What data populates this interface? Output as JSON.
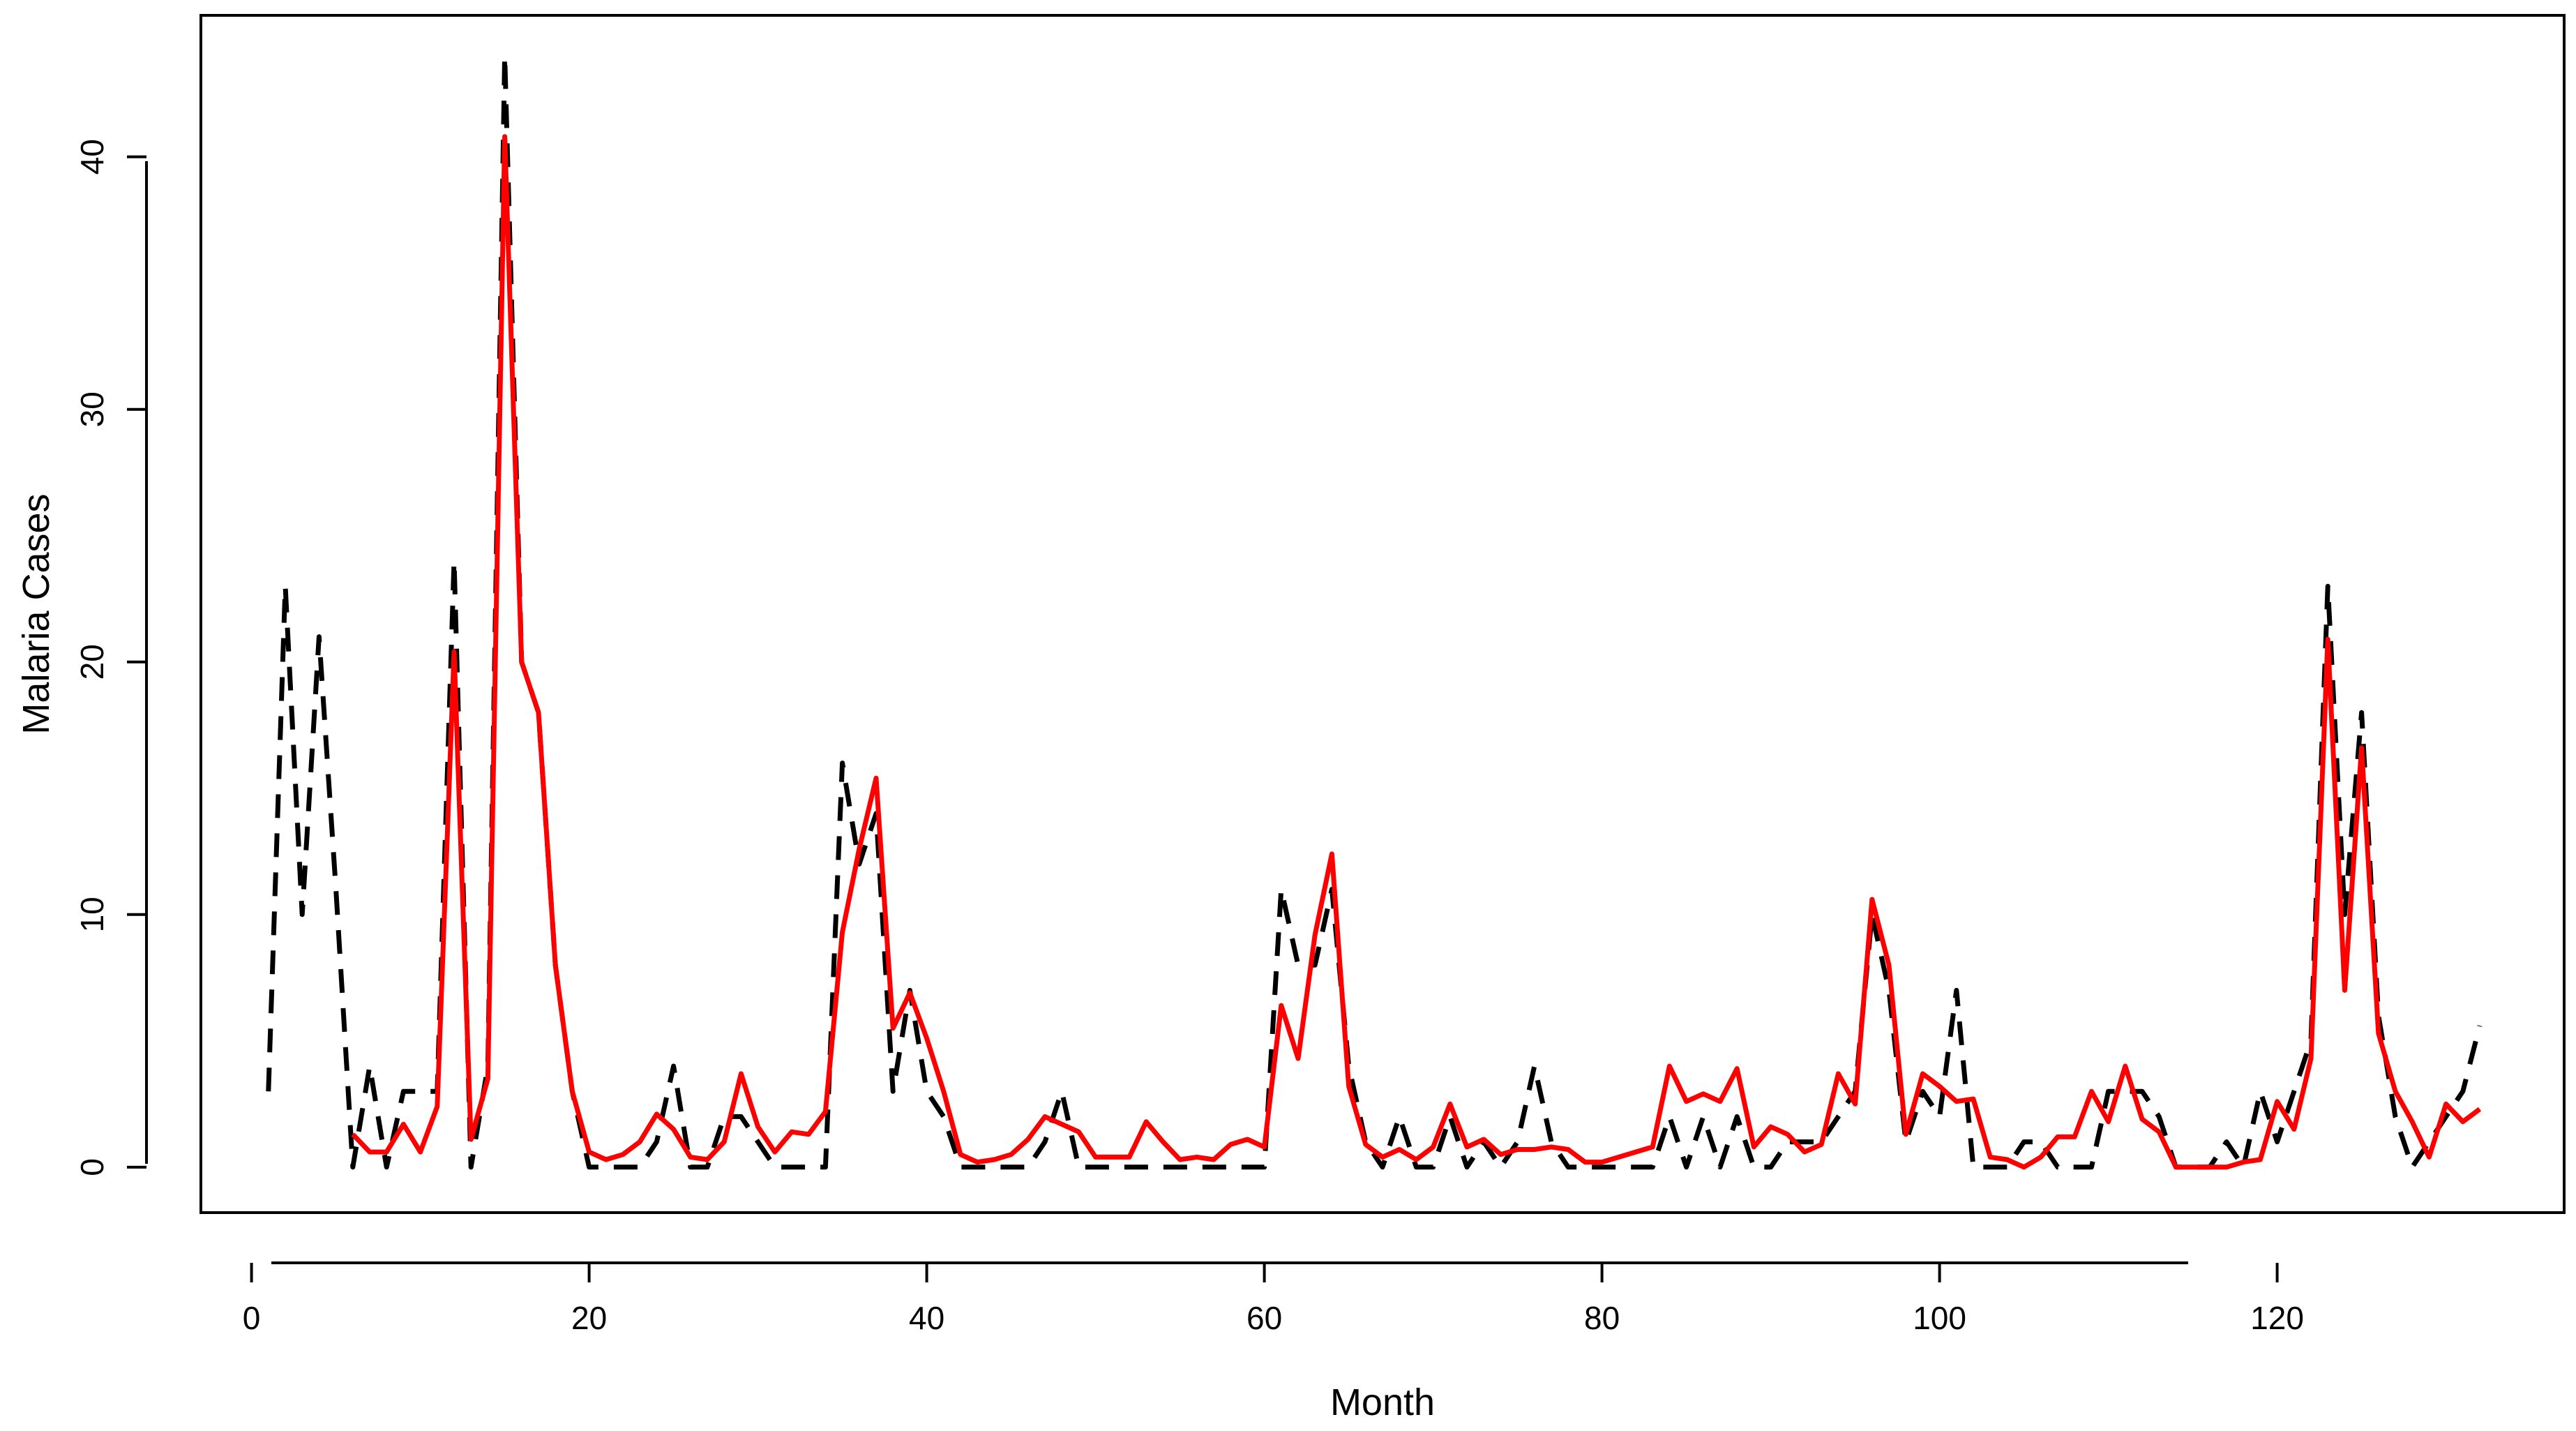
{
  "chart_data": {
    "type": "line",
    "title": "",
    "xlabel": "Month",
    "ylabel": "Malaria Cases",
    "xlim": [
      -3,
      137
    ],
    "ylim": [
      -1.8,
      45.6
    ],
    "x_ticks": [
      0,
      20,
      40,
      60,
      80,
      100,
      120
    ],
    "y_ticks": [
      0,
      10,
      20,
      30,
      40
    ],
    "x_tick_labels": [
      "0",
      "20",
      "40",
      "60",
      "80",
      "100",
      "120"
    ],
    "y_tick_labels": [
      "0",
      "10",
      "20",
      "30",
      "40"
    ],
    "grid": false,
    "legend": "none",
    "series": [
      {
        "style": "dashed",
        "color": "#000000",
        "x_start": 1,
        "values": [
          3,
          23,
          10,
          21,
          11,
          0,
          4,
          0,
          3,
          3,
          3,
          24,
          0,
          4,
          44,
          20,
          18,
          8,
          3,
          0,
          0,
          0,
          0,
          1,
          4,
          0,
          0,
          2,
          2,
          1,
          0,
          0,
          0,
          0,
          16,
          12,
          14,
          3,
          7,
          3,
          2,
          0,
          0,
          0,
          0,
          0,
          1,
          3,
          0,
          0,
          0,
          0,
          0,
          0,
          0,
          0,
          0,
          0,
          0,
          0,
          11,
          8,
          8,
          11,
          4,
          1,
          0,
          2,
          0,
          0,
          2,
          0,
          1,
          0,
          1,
          4,
          1,
          0,
          0,
          0,
          0,
          0,
          0,
          2,
          0,
          2,
          0,
          2,
          0,
          0,
          1,
          1,
          1,
          2,
          3,
          10,
          7,
          1,
          3,
          2,
          7,
          0,
          0,
          0,
          1,
          1,
          0,
          0,
          0,
          3,
          3,
          3,
          2,
          0,
          0,
          0,
          1,
          0,
          3,
          1,
          3,
          5,
          23,
          10,
          18,
          6,
          2,
          0,
          1,
          2,
          3,
          5.6
        ]
      },
      {
        "style": "solid",
        "color": "#ff0000",
        "x_start": 6,
        "values": [
          1.3,
          0.6,
          0.6,
          1.7,
          0.6,
          2.4,
          20.4,
          1.1,
          3.5,
          40.8,
          20,
          18,
          8,
          3,
          0.6,
          0.3,
          0.5,
          1,
          2.1,
          1.5,
          0.4,
          0.3,
          1,
          3.7,
          1.6,
          0.6,
          1.4,
          1.3,
          2.2,
          9.3,
          12.6,
          15.4,
          5.5,
          6.9,
          5.1,
          3,
          0.5,
          0.2,
          0.3,
          0.5,
          1.1,
          2,
          1.7,
          1.4,
          0.4,
          0.4,
          0.4,
          1.8,
          1,
          0.3,
          0.4,
          0.3,
          0.9,
          1.1,
          0.8,
          6.4,
          4.3,
          9.2,
          12.4,
          3.2,
          0.9,
          0.4,
          0.7,
          0.3,
          0.8,
          2.5,
          0.8,
          1.1,
          0.5,
          0.7,
          0.7,
          0.8,
          0.7,
          0.2,
          0.2,
          0.4,
          0.6,
          0.8,
          4,
          2.6,
          2.9,
          2.6,
          3.9,
          0.8,
          1.6,
          1.3,
          0.6,
          0.9,
          3.7,
          2.5,
          10.6,
          8,
          1.3,
          3.7,
          3.2,
          2.6,
          2.7,
          0.4,
          0.3,
          0,
          0.4,
          1.2,
          1.2,
          3,
          1.8,
          4,
          1.9,
          1.4,
          0,
          0,
          0,
          0,
          0.2,
          0.3,
          2.6,
          1.5,
          4.3,
          20.9,
          7,
          16.6,
          5.3,
          3,
          1.8,
          0.4,
          2.5,
          1.8,
          2.3
        ]
      }
    ]
  }
}
